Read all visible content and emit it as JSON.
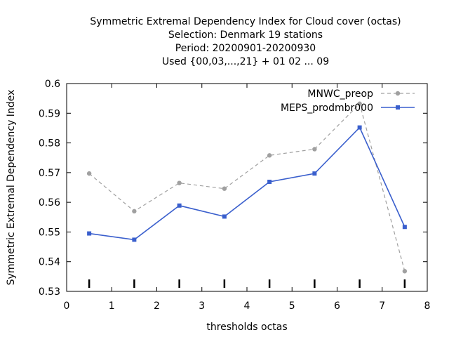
{
  "chart_data": {
    "type": "line",
    "title_lines": [
      "Symmetric Extremal Dependency Index  for Cloud cover (octas)",
      "Selection: Denmark     19 stations",
      "Period: 20200901-20200930",
      "Used {00,03,...,21} + 01 02 ... 09"
    ],
    "xlabel": "thresholds octas",
    "ylabel": "Symmetric Extremal Dependency Index",
    "xlim": [
      0,
      8
    ],
    "ylim": [
      0.53,
      0.6
    ],
    "x_ticks": [
      0,
      1,
      2,
      3,
      4,
      5,
      6,
      7,
      8
    ],
    "y_ticks": [
      0.53,
      0.54,
      0.55,
      0.56,
      0.57,
      0.58,
      0.59,
      0.6
    ],
    "x_tick_labels": [
      "0",
      "1",
      "2",
      "3",
      "4",
      "5",
      "6",
      "7",
      "8"
    ],
    "y_tick_labels": [
      "0.53",
      "0.54",
      "0.55",
      "0.56",
      "0.57",
      "0.58",
      "0.59",
      "0.6"
    ],
    "threshold_marks": [
      0.5,
      1.5,
      2.5,
      3.5,
      4.5,
      5.5,
      6.5,
      7.5
    ],
    "legend_position": "top-right",
    "grid": false,
    "x": [
      0.5,
      1.5,
      2.5,
      3.5,
      4.5,
      5.5,
      6.5,
      7.5
    ],
    "series": [
      {
        "name": "MNWC_preop",
        "values": [
          0.5697,
          0.557,
          0.5665,
          0.5646,
          0.5758,
          0.5779,
          0.5932,
          0.5368
        ],
        "color": "#a0a0a0",
        "dashed": true,
        "marker": "circle"
      },
      {
        "name": "MEPS_prodmbr000",
        "values": [
          0.5495,
          0.5474,
          0.5589,
          0.5552,
          0.5669,
          0.5697,
          0.5852,
          0.5517
        ],
        "color": "#3a5fcd",
        "dashed": false,
        "marker": "square"
      }
    ]
  }
}
